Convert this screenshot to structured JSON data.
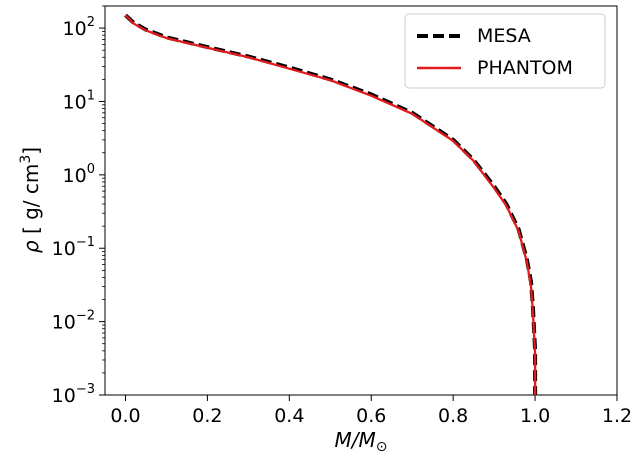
{
  "chart_data": {
    "type": "line",
    "xlabel": "M/M⊙",
    "ylabel": "ρ [ g/ cm³]",
    "xlim": [
      -0.05,
      1.2
    ],
    "ylim": [
      0.001,
      200
    ],
    "yscale": "log",
    "x_ticks": [
      0.0,
      0.2,
      0.4,
      0.6,
      0.8,
      1.0,
      1.2
    ],
    "x_tick_labels": [
      "0.0",
      "0.2",
      "0.4",
      "0.6",
      "0.8",
      "1.0",
      "1.2"
    ],
    "y_tick_labels": [
      {
        "base": "10",
        "exp": "2",
        "value": 100
      },
      {
        "base": "10",
        "exp": "1",
        "value": 10
      },
      {
        "base": "10",
        "exp": "0",
        "value": 1
      },
      {
        "base": "10",
        "exp": "−1",
        "value": 0.1
      },
      {
        "base": "10",
        "exp": "−2",
        "value": 0.01
      },
      {
        "base": "10",
        "exp": "−3",
        "value": 0.001
      }
    ],
    "legend": {
      "placement": "top-right"
    },
    "series": [
      {
        "name": "MESA",
        "color": "#000000",
        "style": "dashed",
        "x": [
          0.0,
          0.02,
          0.05,
          0.1,
          0.2,
          0.3,
          0.4,
          0.5,
          0.6,
          0.7,
          0.8,
          0.85,
          0.9,
          0.93,
          0.96,
          0.98,
          0.99,
          0.995,
          1.0,
          1.0
        ],
        "y": [
          150,
          118,
          95,
          75,
          55,
          41,
          29,
          20,
          12.5,
          7,
          3,
          1.6,
          0.7,
          0.4,
          0.18,
          0.07,
          0.035,
          0.015,
          0.004,
          0.001
        ]
      },
      {
        "name": "PHANTOM",
        "color": "#e41a1c",
        "style": "solid",
        "x": [
          0.0,
          0.02,
          0.05,
          0.1,
          0.2,
          0.3,
          0.4,
          0.5,
          0.6,
          0.7,
          0.8,
          0.85,
          0.9,
          0.93,
          0.96,
          0.98,
          0.99,
          0.995,
          1.0,
          1.0
        ],
        "y": [
          150,
          115,
          93,
          73,
          54,
          40,
          28,
          19.5,
          12,
          6.8,
          2.9,
          1.55,
          0.66,
          0.38,
          0.17,
          0.065,
          0.03,
          0.013,
          0.0035,
          0.001
        ]
      }
    ]
  }
}
